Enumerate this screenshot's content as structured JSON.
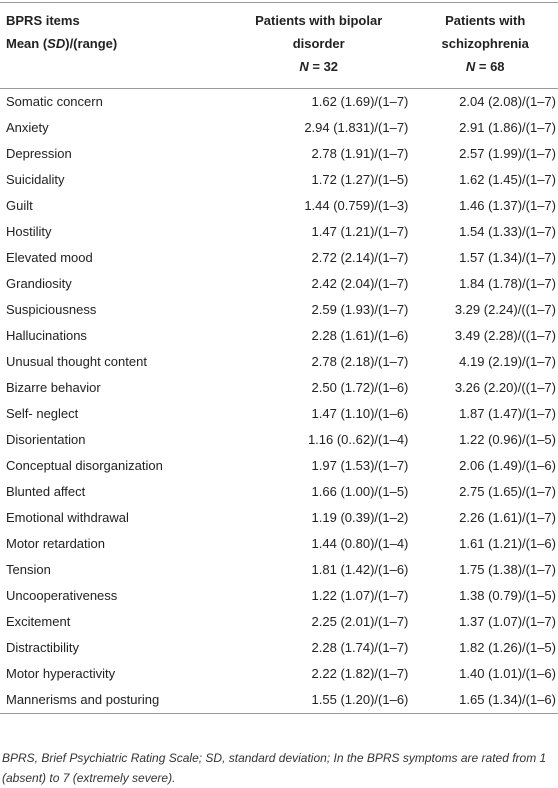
{
  "header": {
    "items": {
      "line1": "BPRS items",
      "line2": [
        "Mean (",
        "SD",
        ")/(range)"
      ]
    },
    "bipolar": {
      "line1": "Patients with bipolar",
      "line2": "disorder",
      "line3": [
        "N",
        " = 32"
      ]
    },
    "schizophrenia": {
      "line1": "Patients with",
      "line2": "schizophrenia",
      "line3": [
        "N",
        " = 68"
      ]
    }
  },
  "table": {
    "rows": [
      [
        "Somatic concern",
        "1.62 (1.69)/(1–7)",
        "2.04 (2.08)/(1–7)"
      ],
      [
        "Anxiety",
        "2.94 (1.831)/(1–7)",
        "2.91 (1.86)/(1–7)"
      ],
      [
        "Depression",
        "2.78 (1.91)/(1–7)",
        "2.57 (1.99)/(1–7)"
      ],
      [
        "Suicidality",
        "1.72 (1.27)/(1–5)",
        "1.62 (1.45)/(1–7)"
      ],
      [
        "Guilt",
        "1.44 (0.759)/(1–3)",
        "1.46 (1.37)/(1–7)"
      ],
      [
        "Hostility",
        "1.47 (1.21)/(1–7)",
        "1.54 (1.33)/(1–7)"
      ],
      [
        "Elevated mood",
        "2.72 (2.14)/(1–7)",
        "1.57 (1.34)/(1–7)"
      ],
      [
        "Grandiosity",
        "2.42 (2.04)/(1–7)",
        "1.84 (1.78)/(1–7)"
      ],
      [
        "Suspiciousness",
        "2.59 (1.93)/(1–7)",
        "3.29 (2.24)/((1–7)"
      ],
      [
        "Hallucinations",
        "2.28 (1.61)/(1–6)",
        "3.49 (2.28)/((1–7)"
      ],
      [
        "Unusual thought content",
        "2.78 (2.18)/(1–7)",
        "4.19 (2.19)/(1–7)"
      ],
      [
        "Bizarre behavior",
        "2.50 (1.72)/(1–6)",
        "3.26 (2.20)/((1–7)"
      ],
      [
        "Self- neglect",
        "1.47 (1.10)/(1–6)",
        "1.87 (1.47)/(1–7)"
      ],
      [
        "Disorientation",
        "1.16 (0..62)/(1–4)",
        "1.22 (0.96)/(1–5)"
      ],
      [
        "Conceptual disorganization",
        "1.97 (1.53)/(1–7)",
        "2.06 (1.49)/(1–6)"
      ],
      [
        "Blunted affect",
        "1.66 (1.00)/(1–5)",
        "2.75 (1.65)/(1–7)"
      ],
      [
        "Emotional withdrawal",
        "1.19 (0.39)/(1–2)",
        "2.26 (1.61)/(1–7)"
      ],
      [
        "Motor retardation",
        "1.44 (0.80)/(1–4)",
        "1.61 (1.21)/(1–6)"
      ],
      [
        "Tension",
        "1.81 (1.42)/(1–6)",
        "1.75 (1.38)/(1–7)"
      ],
      [
        "Uncooperativeness",
        "1.22 (1.07)/(1–7)",
        "1.38 (0.79)/(1–5)"
      ],
      [
        "Excitement",
        "2.25 (2.01)/(1–7)",
        "1.37 (1.07)/(1–7)"
      ],
      [
        "Distractibility",
        "2.28 (1.74)/(1–7)",
        "1.82 (1.26)/(1–5)"
      ],
      [
        "Motor hyperactivity",
        "2.22 (1.82)/(1–7)",
        "1.40 (1.01)/(1–6)"
      ],
      [
        "Mannerisms and posturing",
        "1.55 (1.20)/(1–6)",
        "1.65 (1.34)/(1–6)"
      ]
    ]
  },
  "footnote": "BPRS, Brief Psychiatric Rating Scale; SD, standard deviation; In the BPRS symptoms are rated from 1 (absent) to 7 (extremely severe)."
}
